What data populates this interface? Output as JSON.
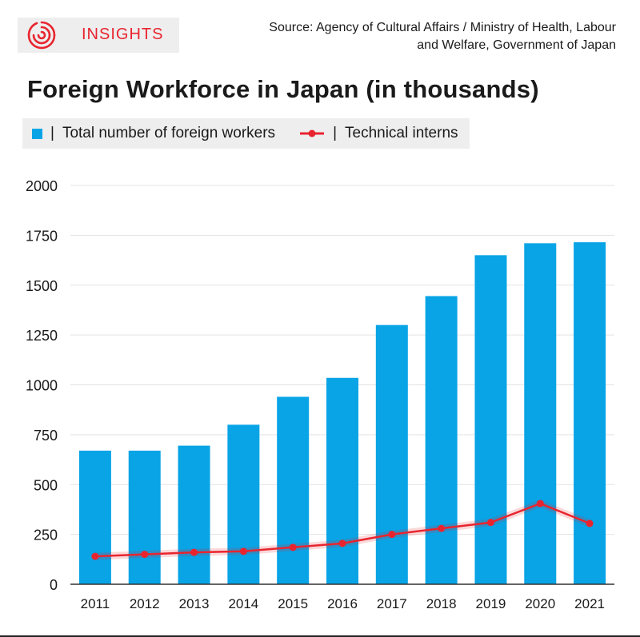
{
  "header": {
    "logo_text": "INSIGHTS",
    "source_line1": "Source: Agency of Cultural Affairs / Ministry of Health, Labour",
    "source_line2": "and Welfare, Government of Japan"
  },
  "colors": {
    "bar": "#08a4e6",
    "line": "#e8252f",
    "brand": "#e8252f"
  },
  "chart_data": {
    "type": "bar",
    "title": "Foreign Workforce in Japan (in thousands)",
    "categories": [
      "2011",
      "2012",
      "2013",
      "2014",
      "2015",
      "2016",
      "2017",
      "2018",
      "2019",
      "2020",
      "2021"
    ],
    "series": [
      {
        "name": "Total number of foreign workers",
        "type": "bar",
        "values": [
          670,
          670,
          695,
          800,
          940,
          1035,
          1300,
          1445,
          1650,
          1710,
          1715
        ]
      },
      {
        "name": "Technical interns",
        "type": "line",
        "values": [
          140,
          150,
          160,
          165,
          185,
          205,
          250,
          280,
          310,
          405,
          305
        ]
      }
    ],
    "ylim": [
      0,
      2000
    ],
    "yticks": [
      0,
      250,
      500,
      750,
      1000,
      1250,
      1500,
      1750,
      2000
    ],
    "grid": true,
    "legend_position": "top-left",
    "legend_separator": "|"
  }
}
